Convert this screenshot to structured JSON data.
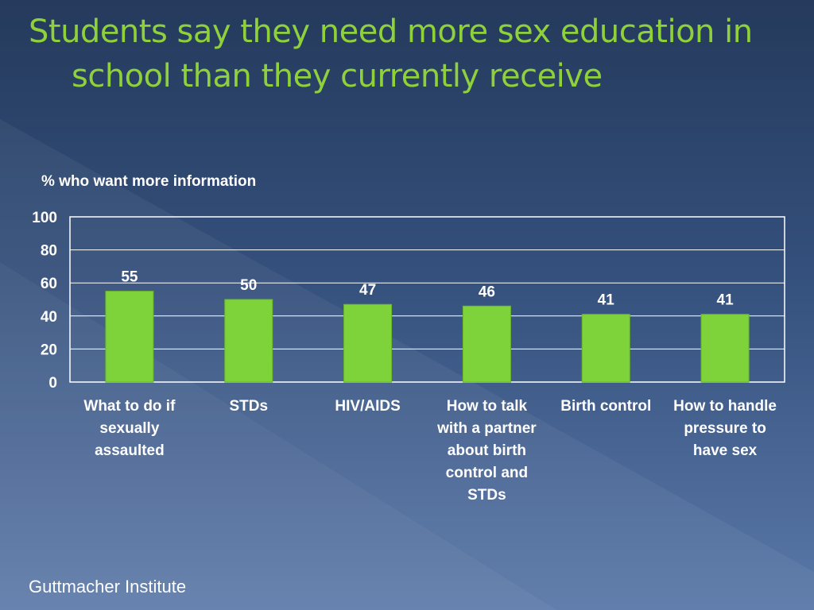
{
  "slide": {
    "title": "Students say they need more sex education in school than they currently receive",
    "source": "Guttmacher Institute"
  },
  "colors": {
    "title": "#8fd13a",
    "bar": "#7ed23a",
    "bar_edge": "#6ab52a",
    "text": "#ffffff"
  },
  "chart_data": {
    "type": "bar",
    "ylabel": "% who want more information",
    "xlabel": "",
    "categories": [
      "What to do if sexually assaulted",
      "STDs",
      "HIV/AIDS",
      "How to talk with a partner about birth control and STDs",
      "Birth control",
      "How to handle pressure to have sex"
    ],
    "values": [
      55,
      50,
      47,
      46,
      41,
      41
    ],
    "ylim": [
      0,
      100
    ],
    "yticks": [
      0,
      20,
      40,
      60,
      80,
      100
    ],
    "grid": true,
    "legend": "none"
  }
}
